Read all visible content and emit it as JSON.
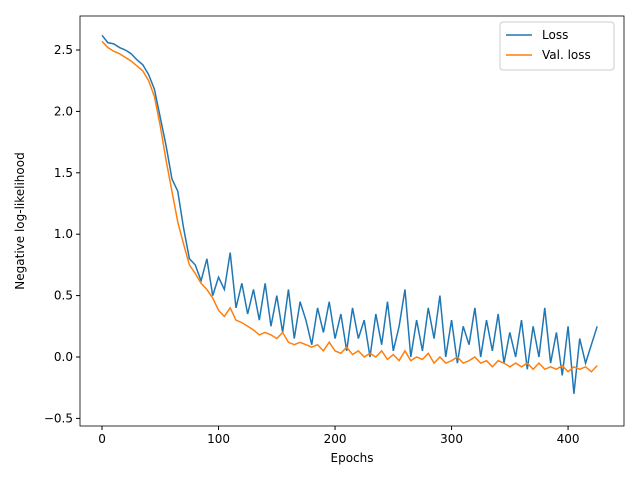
{
  "chart_data": {
    "type": "line",
    "xlabel": "Epochs",
    "ylabel": "Negative log-likelihood",
    "x": [
      0,
      5,
      10,
      15,
      20,
      25,
      30,
      35,
      40,
      45,
      50,
      55,
      60,
      65,
      70,
      75,
      80,
      85,
      90,
      95,
      100,
      105,
      110,
      115,
      120,
      125,
      130,
      135,
      140,
      145,
      150,
      155,
      160,
      165,
      170,
      175,
      180,
      185,
      190,
      195,
      200,
      205,
      210,
      215,
      220,
      225,
      230,
      235,
      240,
      245,
      250,
      255,
      260,
      265,
      270,
      275,
      280,
      285,
      290,
      295,
      300,
      305,
      310,
      315,
      320,
      325,
      330,
      335,
      340,
      345,
      350,
      355,
      360,
      365,
      370,
      375,
      380,
      385,
      390,
      395,
      400,
      405,
      410,
      415,
      420,
      425
    ],
    "series": [
      {
        "name": "Loss",
        "color": "#1f77b4",
        "values": [
          2.62,
          2.56,
          2.55,
          2.52,
          2.5,
          2.47,
          2.42,
          2.38,
          2.3,
          2.18,
          1.95,
          1.72,
          1.45,
          1.35,
          1.05,
          0.8,
          0.75,
          0.62,
          0.8,
          0.5,
          0.65,
          0.55,
          0.85,
          0.4,
          0.6,
          0.35,
          0.55,
          0.3,
          0.6,
          0.25,
          0.5,
          0.2,
          0.55,
          0.15,
          0.45,
          0.3,
          0.1,
          0.4,
          0.2,
          0.45,
          0.15,
          0.35,
          0.05,
          0.4,
          0.15,
          0.3,
          0.0,
          0.35,
          0.1,
          0.45,
          0.05,
          0.25,
          0.55,
          0.0,
          0.3,
          0.05,
          0.4,
          0.15,
          0.5,
          0.0,
          0.3,
          -0.05,
          0.25,
          0.1,
          0.4,
          0.0,
          0.3,
          0.05,
          0.35,
          -0.05,
          0.2,
          0.0,
          0.3,
          -0.1,
          0.25,
          0.0,
          0.4,
          -0.05,
          0.2,
          -0.15,
          0.25,
          -0.3,
          0.15,
          -0.05,
          0.1,
          0.25
        ]
      },
      {
        "name": "Val. loss",
        "color": "#ff7f0e",
        "values": [
          2.57,
          2.52,
          2.49,
          2.47,
          2.44,
          2.41,
          2.37,
          2.33,
          2.25,
          2.12,
          1.88,
          1.6,
          1.35,
          1.1,
          0.92,
          0.75,
          0.68,
          0.6,
          0.55,
          0.48,
          0.38,
          0.33,
          0.4,
          0.3,
          0.28,
          0.25,
          0.22,
          0.18,
          0.2,
          0.18,
          0.15,
          0.2,
          0.12,
          0.1,
          0.12,
          0.1,
          0.08,
          0.1,
          0.05,
          0.12,
          0.05,
          0.03,
          0.08,
          0.02,
          0.05,
          0.0,
          0.03,
          0.0,
          0.05,
          -0.02,
          0.02,
          -0.03,
          0.05,
          -0.03,
          0.0,
          -0.02,
          0.03,
          -0.05,
          0.0,
          -0.05,
          -0.03,
          0.0,
          -0.05,
          -0.03,
          0.0,
          -0.05,
          -0.03,
          -0.08,
          -0.03,
          -0.05,
          -0.08,
          -0.05,
          -0.08,
          -0.05,
          -0.1,
          -0.05,
          -0.1,
          -0.08,
          -0.1,
          -0.07,
          -0.12,
          -0.08,
          -0.1,
          -0.08,
          -0.12,
          -0.07
        ]
      }
    ],
    "xlim": [
      -18.9,
      448
    ],
    "xticks": [
      0,
      100,
      200,
      300,
      400
    ],
    "ylim": [
      -0.562,
      2.777
    ],
    "yticks": [
      {
        "value": -0.5,
        "label": "−0.5"
      },
      {
        "value": 0,
        "label": "0.0"
      },
      {
        "value": 0.5,
        "label": "0.5"
      },
      {
        "value": 1,
        "label": "1.0"
      },
      {
        "value": 1.5,
        "label": "1.5"
      },
      {
        "value": 2,
        "label": "2.0"
      },
      {
        "value": 2.5,
        "label": "2.5"
      }
    ],
    "legend": "upper right"
  }
}
